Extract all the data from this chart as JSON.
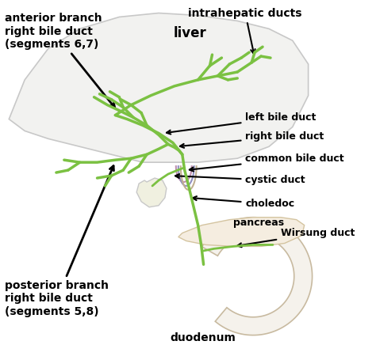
{
  "background_color": "#ffffff",
  "duct_color": "#7bc142",
  "duct_lw": 2.5,
  "duct_lw_thin": 1.8,
  "text_color": "#000000",
  "organ_fill_liver": "#f2f2f0",
  "organ_edge_liver": "#c8c8c8",
  "organ_fill_duodenum": "#f5f2ec",
  "organ_edge_duodenum": "#c8baa0",
  "organ_fill_gallbladder": "#f0f0e0",
  "organ_fill_pancreas": "#f5ede0",
  "organ_edge_pancreas": "#d4c4a0",
  "colored_duct1": "#c090b0",
  "colored_duct2": "#9090c0",
  "colored_duct3": "#c0b090",
  "labels": {
    "anterior_branch": "anterior branch\nright bile duct\n(segments 6,7)",
    "posterior_branch": "posterior branch\nright bile duct\n(segments 5,8)",
    "intrahepatic": "intrahepatic ducts",
    "liver": "liver",
    "left_bile": "left bile duct",
    "right_bile": "right bile duct",
    "common_bile": "common bile duct",
    "cystic": "cystic duct",
    "choledoc": "choledoc",
    "pancreas": "pancreas",
    "wirsung": "Wirsung duct",
    "duodenum": "duodenum"
  },
  "fontsize_large": 10,
  "fontsize_label": 9
}
